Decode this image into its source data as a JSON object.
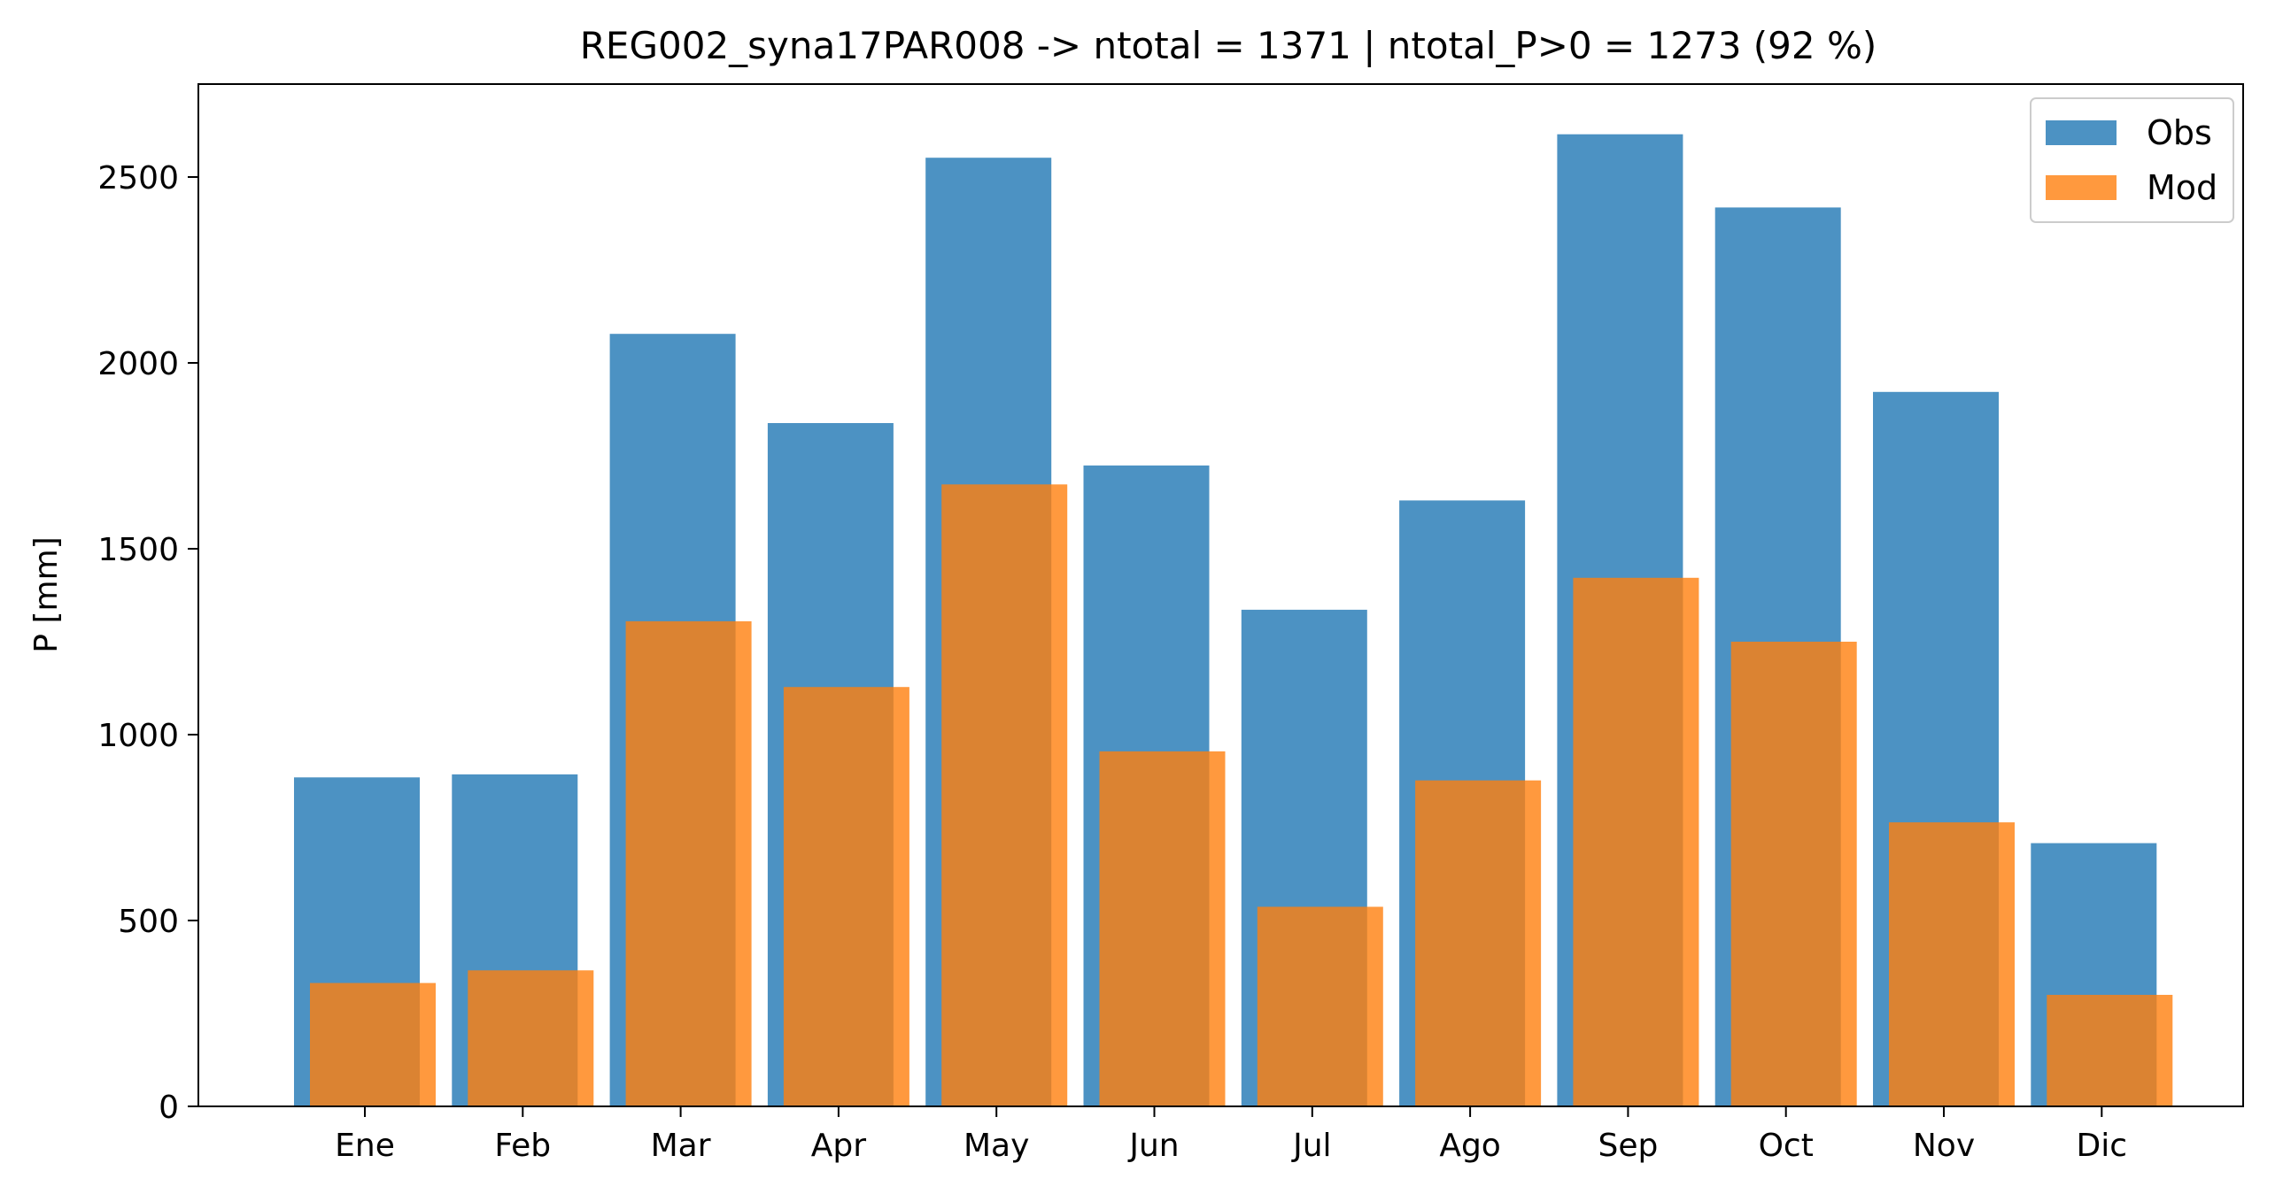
{
  "chart_data": {
    "type": "bar",
    "title": "REG002_syna17PAR008 -> ntotal = 1371 | ntotal_P>0 = 1273 (92 %)",
    "xlabel": "",
    "ylabel": "P [mm]",
    "ylim": [
      0,
      2750
    ],
    "yticks": [
      0,
      500,
      1000,
      1500,
      2000,
      2500
    ],
    "ytick_labels": [
      "0",
      "500",
      "1000",
      "1500",
      "2000",
      "2500"
    ],
    "categories": [
      "Ene",
      "Feb",
      "Mar",
      "Apr",
      "May",
      "Jun",
      "Jul",
      "Ago",
      "Sep",
      "Oct",
      "Nov",
      "Dic"
    ],
    "series": [
      {
        "name": "Obs",
        "color": "#1f77b4",
        "values": [
          885,
          893,
          2078,
          1838,
          2552,
          1724,
          1336,
          1630,
          2615,
          2418,
          1922,
          708
        ]
      },
      {
        "name": "Mod",
        "color": "#ff7f0e",
        "values": [
          332,
          366,
          1305,
          1128,
          1673,
          955,
          537,
          877,
          1422,
          1250,
          764,
          300
        ]
      }
    ],
    "grid": false,
    "legend_position": "top-right"
  }
}
